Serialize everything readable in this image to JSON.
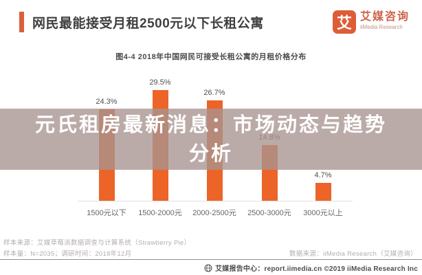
{
  "header": {
    "title": "网民最能接受月租2500元以下长租公寓",
    "logo": {
      "glyph": "艾",
      "brand_cn": "艾媒咨询",
      "brand_en": "iiMedia Research",
      "brand_color": "#dd5d38"
    }
  },
  "chart_data": {
    "type": "bar",
    "title": "图4-4 2018年中国网民可接受长租公寓的月租价格分布",
    "categories": [
      "1500元以下",
      "1500-2000元",
      "2000-2500元",
      "2500-3000元",
      "3000元以上"
    ],
    "values": [
      24.3,
      29.5,
      26.7,
      14.8,
      4.7
    ],
    "value_labels": [
      "24.3%",
      "29.5%",
      "26.7%",
      "14.8%",
      "4.7%"
    ],
    "xlabel": "",
    "ylabel": "",
    "ylim": [
      0,
      32
    ],
    "grid": false,
    "legend": "none",
    "bar_color": "#ec6428"
  },
  "overlay": {
    "text": "元氏租房最新消息：市场动态与趋势分析",
    "bg_color": "rgba(168,148,144,0.78)",
    "text_color": "#ffffff"
  },
  "footer": {
    "sample_source": "样本来源：艾媒草莓派数据调查与计算系统（Strawberry Pie）",
    "sample_size": "样本量：N=2035；调研时间：2018年12月",
    "data_source": "数据来源：iiMedia Research（艾媒咨询）",
    "report_center": "艾媒报告中心：report.iimedia.cn ©2019 iiMedia Research Inc"
  }
}
